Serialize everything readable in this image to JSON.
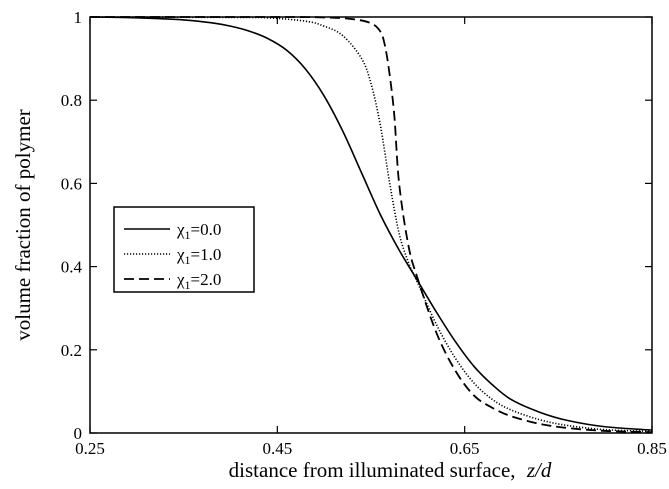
{
  "chart_data": {
    "type": "line",
    "xlabel": "distance from illuminated surface,",
    "xlabel_var": "z/d",
    "ylabel": "volume fraction of polymer",
    "xlim": [
      0.25,
      0.85
    ],
    "ylim": [
      0,
      1
    ],
    "x_ticks": [
      0.25,
      0.45,
      0.65,
      0.85
    ],
    "x_tick_labels": [
      "0.25",
      "0.45",
      "0.65",
      "0.85"
    ],
    "y_ticks": [
      0,
      0.2,
      0.4,
      0.6,
      0.8,
      1
    ],
    "y_tick_labels": [
      "0",
      "0.2",
      "0.4",
      "0.6",
      "0.8",
      "1"
    ],
    "grid": false,
    "legend_position": "middle-left",
    "series": [
      {
        "name": "χ₁=0.0",
        "label_symbol": "χ",
        "label_sub": "1",
        "label_rest": "=0.0",
        "style": "solid",
        "x": [
          0.25,
          0.3,
          0.35,
          0.38,
          0.4,
          0.42,
          0.44,
          0.46,
          0.48,
          0.5,
          0.52,
          0.54,
          0.56,
          0.58,
          0.6,
          0.62,
          0.64,
          0.66,
          0.68,
          0.7,
          0.73,
          0.76,
          0.8,
          0.85
        ],
        "y": [
          1.0,
          0.998,
          0.993,
          0.986,
          0.978,
          0.966,
          0.948,
          0.92,
          0.875,
          0.81,
          0.725,
          0.625,
          0.525,
          0.44,
          0.365,
          0.29,
          0.22,
          0.16,
          0.115,
          0.08,
          0.05,
          0.03,
          0.015,
          0.007
        ]
      },
      {
        "name": "χ₁=1.0",
        "label_symbol": "χ",
        "label_sub": "1",
        "label_rest": "=1.0",
        "style": "dotted",
        "x": [
          0.25,
          0.4,
          0.44,
          0.48,
          0.5,
          0.52,
          0.54,
          0.55,
          0.56,
          0.57,
          0.58,
          0.59,
          0.6,
          0.62,
          0.64,
          0.66,
          0.68,
          0.7,
          0.73,
          0.76,
          0.8,
          0.85
        ],
        "y": [
          1.0,
          0.999,
          0.998,
          0.99,
          0.978,
          0.955,
          0.9,
          0.84,
          0.74,
          0.6,
          0.48,
          0.41,
          0.36,
          0.26,
          0.18,
          0.12,
          0.08,
          0.055,
          0.032,
          0.018,
          0.008,
          0.004
        ]
      },
      {
        "name": "χ₁=2.0",
        "label_symbol": "χ",
        "label_sub": "1",
        "label_rest": "=2.0",
        "style": "dashed",
        "x": [
          0.25,
          0.45,
          0.5,
          0.53,
          0.55,
          0.56,
          0.565,
          0.57,
          0.575,
          0.58,
          0.59,
          0.6,
          0.62,
          0.64,
          0.66,
          0.68,
          0.7,
          0.73,
          0.76,
          0.8,
          0.85
        ],
        "y": [
          1.0,
          1.0,
          0.999,
          0.995,
          0.985,
          0.965,
          0.93,
          0.86,
          0.76,
          0.6,
          0.45,
          0.37,
          0.24,
          0.15,
          0.09,
          0.06,
          0.04,
          0.022,
          0.012,
          0.005,
          0.002
        ]
      }
    ]
  }
}
